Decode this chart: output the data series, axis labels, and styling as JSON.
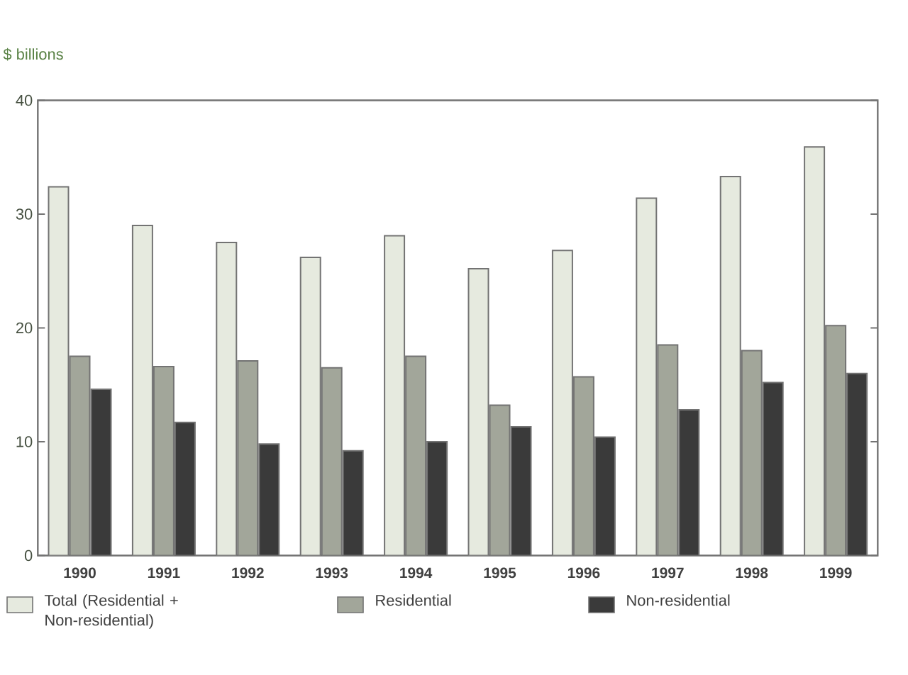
{
  "chart_data": {
    "type": "bar",
    "ylabel": "$ billions",
    "categories": [
      "1990",
      "1991",
      "1992",
      "1993",
      "1994",
      "1995",
      "1996",
      "1997",
      "1998",
      "1999"
    ],
    "series": [
      {
        "name": "Total (Residential + Non-residential)",
        "color": "#e6eadf",
        "values": [
          32.4,
          29.0,
          27.5,
          26.2,
          28.1,
          25.2,
          26.8,
          31.4,
          33.3,
          35.9
        ]
      },
      {
        "name": "Residential",
        "color": "#a2a69a",
        "values": [
          17.5,
          16.6,
          17.1,
          16.5,
          17.5,
          13.2,
          15.7,
          18.5,
          18.0,
          20.2
        ]
      },
      {
        "name": "Non-residential",
        "color": "#3a3a3a",
        "values": [
          14.6,
          11.7,
          9.8,
          9.2,
          10.0,
          11.3,
          10.4,
          12.8,
          15.2,
          16.0
        ]
      }
    ],
    "ylim": [
      0,
      40
    ],
    "yticks": [
      0,
      10,
      20,
      30,
      40
    ],
    "grid": false,
    "legend": "bottom"
  }
}
